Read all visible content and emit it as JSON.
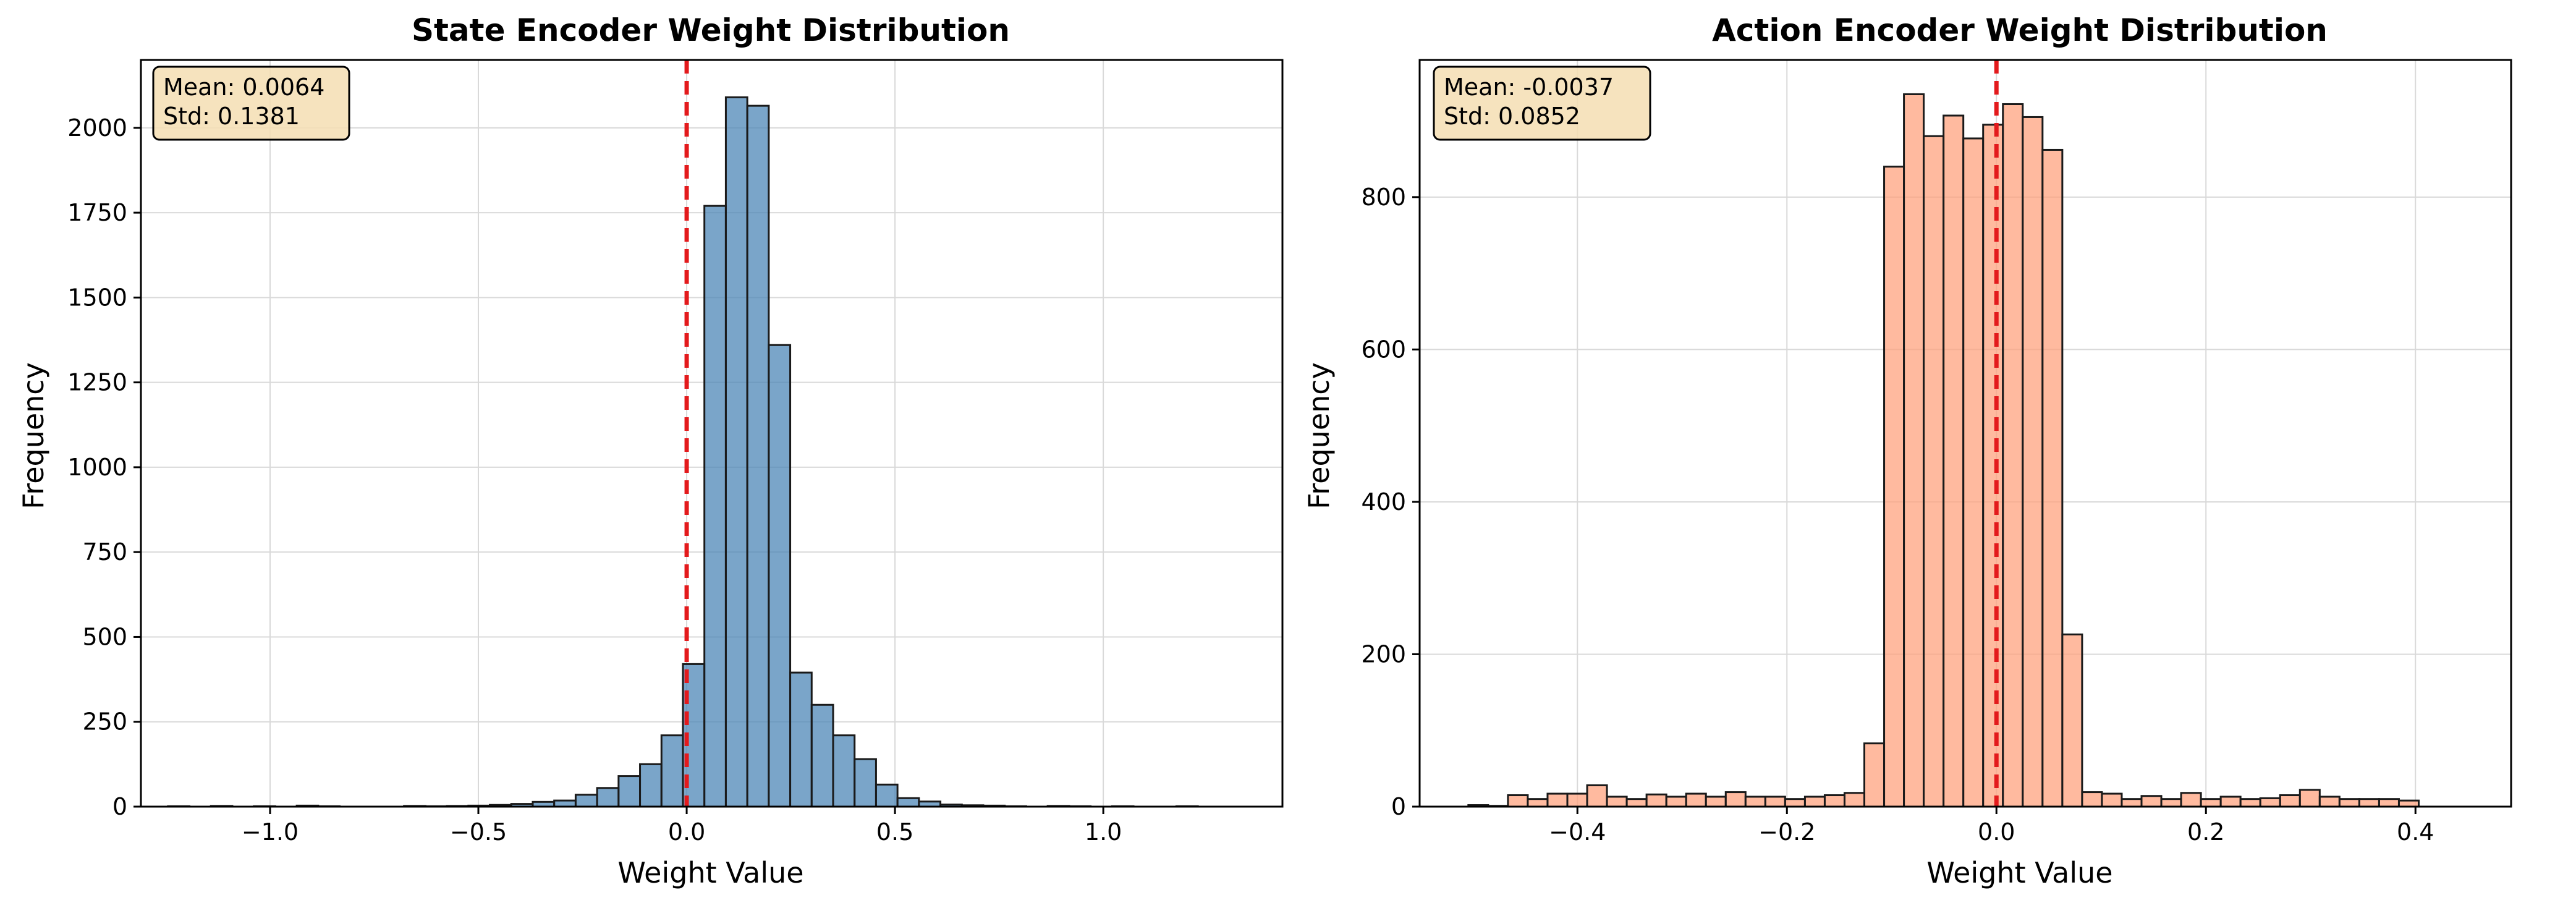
{
  "chart_data": [
    {
      "type": "bar",
      "title": "State Encoder Weight Distribution",
      "xlabel": "Weight Value",
      "ylabel": "Frequency",
      "xlim": [
        -1.31,
        1.43
      ],
      "ylim": [
        0,
        2200
      ],
      "xticks": [
        -1.0,
        -0.5,
        0.0,
        0.5,
        1.0
      ],
      "xtick_labels": [
        "−1.0",
        "−0.5",
        "0.0",
        "0.5",
        "1.0"
      ],
      "yticks": [
        0,
        250,
        500,
        750,
        1000,
        1250,
        1500,
        1750,
        2000
      ],
      "ytick_labels": [
        "0",
        "250",
        "500",
        "750",
        "1000",
        "1250",
        "1500",
        "1750",
        "2000"
      ],
      "grid": true,
      "bar_color": "#4682b4",
      "bin_start": -1.245,
      "bin_width": 0.0515,
      "values": [
        1,
        0,
        2,
        0,
        1,
        0,
        3,
        1,
        0,
        0,
        0,
        2,
        1,
        2,
        3,
        5,
        8,
        14,
        18,
        35,
        55,
        90,
        125,
        210,
        420,
        1770,
        2090,
        2065,
        1360,
        395,
        300,
        210,
        140,
        65,
        25,
        15,
        6,
        4,
        3,
        1,
        0,
        2,
        1,
        0,
        1,
        0,
        0,
        1,
        0,
        0
      ],
      "mean_line": {
        "x": 0.0,
        "color": "#e31a1c"
      },
      "stats_box": {
        "mean": "Mean: 0.0064",
        "std": "Std: 0.1381"
      }
    },
    {
      "type": "bar",
      "title": "Action Encoder Weight Distribution",
      "xlabel": "Weight Value",
      "ylabel": "Frequency",
      "xlim": [
        -0.5506,
        0.4913
      ],
      "ylim": [
        0,
        980
      ],
      "xticks": [
        -0.4,
        -0.2,
        0.0,
        0.2,
        0.4
      ],
      "xtick_labels": [
        "−0.4",
        "−0.2",
        "0.0",
        "0.2",
        "0.4"
      ],
      "yticks": [
        0,
        200,
        400,
        600,
        800
      ],
      "ytick_labels": [
        "0",
        "200",
        "400",
        "600",
        "800"
      ],
      "grid": true,
      "bar_color": "#ffa07a",
      "bin_start": -0.5041,
      "bin_width": 0.0189,
      "values": [
        2,
        1,
        15,
        10,
        17,
        17,
        28,
        13,
        10,
        16,
        13,
        17,
        13,
        19,
        13,
        13,
        10,
        13,
        15,
        18,
        83,
        840,
        935,
        880,
        907,
        877,
        895,
        922,
        905,
        862,
        226,
        19,
        17,
        10,
        14,
        10,
        18,
        10,
        13,
        10,
        11,
        15,
        22,
        13,
        10,
        10,
        10,
        8
      ],
      "mean_line": {
        "x": 0.0,
        "color": "#e31a1c"
      },
      "stats_box": {
        "mean": "Mean: -0.0037",
        "std": "Std: 0.0852"
      }
    }
  ]
}
